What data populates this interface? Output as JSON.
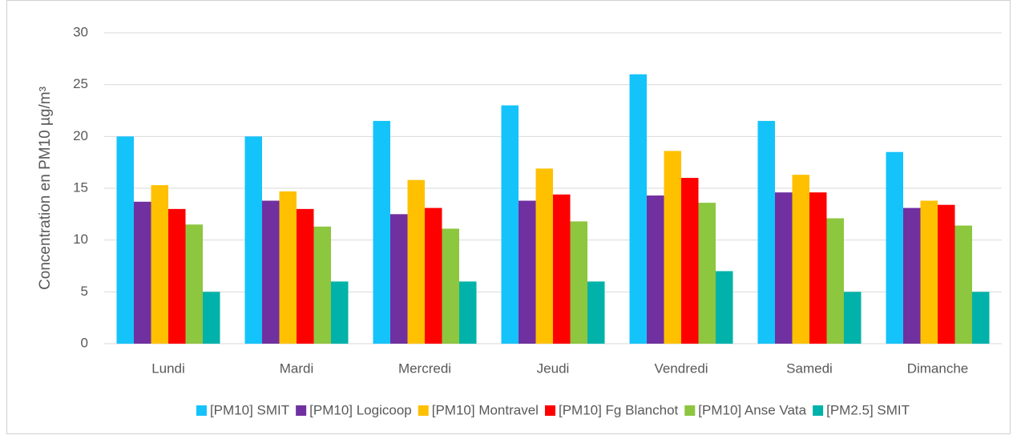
{
  "chart_data": {
    "type": "bar",
    "y_label": "Concentration en PM10 µg/m³",
    "categories": [
      "Lundi",
      "Mardi",
      "Mercredi",
      "Jeudi",
      "Vendredi",
      "Samedi",
      "Dimanche"
    ],
    "series": [
      {
        "name": "[PM10] SMIT",
        "color": "#15c3fb",
        "values": [
          20,
          20,
          21.5,
          23,
          26,
          21.5,
          18.5
        ]
      },
      {
        "name": "[PM10] Logicoop",
        "color": "#7030a0",
        "values": [
          13.7,
          13.8,
          12.5,
          13.8,
          14.3,
          14.6,
          13.1
        ]
      },
      {
        "name": "[PM10] Montravel",
        "color": "#ffc000",
        "values": [
          15.3,
          14.7,
          15.8,
          16.9,
          18.6,
          16.3,
          13.8
        ]
      },
      {
        "name": "[PM10] Fg Blanchot",
        "color": "#ff0000",
        "values": [
          13,
          13,
          13.1,
          14.4,
          16,
          14.6,
          13.4
        ]
      },
      {
        "name": "[PM10] Anse Vata",
        "color": "#8dc63f",
        "values": [
          11.5,
          11.3,
          11.1,
          11.8,
          13.6,
          12.1,
          11.4
        ]
      },
      {
        "name": "[PM2.5] SMIT",
        "color": "#00b2a9",
        "values": [
          5,
          6,
          6,
          6,
          7,
          5,
          5
        ]
      }
    ],
    "ylim": [
      0,
      30
    ],
    "yticks": [
      0,
      5,
      10,
      15,
      20,
      25,
      30
    ],
    "grid": true,
    "legend": "bottom"
  }
}
